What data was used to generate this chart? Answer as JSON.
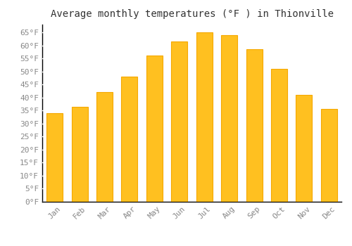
{
  "title": "Average monthly temperatures (°F ) in Thionville",
  "months": [
    "Jan",
    "Feb",
    "Mar",
    "Apr",
    "May",
    "Jun",
    "Jul",
    "Aug",
    "Sep",
    "Oct",
    "Nov",
    "Dec"
  ],
  "values": [
    34,
    36.5,
    42,
    48,
    56,
    61.5,
    65,
    64,
    58.5,
    51,
    41,
    35.5
  ],
  "bar_color_face": "#FFC020",
  "bar_color_edge": "#F5A800",
  "background_color": "#FFFFFF",
  "grid_color": "#DDDDDD",
  "ylim": [
    0,
    68
  ],
  "yticks": [
    0,
    5,
    10,
    15,
    20,
    25,
    30,
    35,
    40,
    45,
    50,
    55,
    60,
    65
  ],
  "ytick_labels": [
    "0°F",
    "5°F",
    "10°F",
    "15°F",
    "20°F",
    "25°F",
    "30°F",
    "35°F",
    "40°F",
    "45°F",
    "50°F",
    "55°F",
    "60°F",
    "65°F"
  ],
  "title_fontsize": 10,
  "tick_fontsize": 8,
  "font_family": "monospace"
}
